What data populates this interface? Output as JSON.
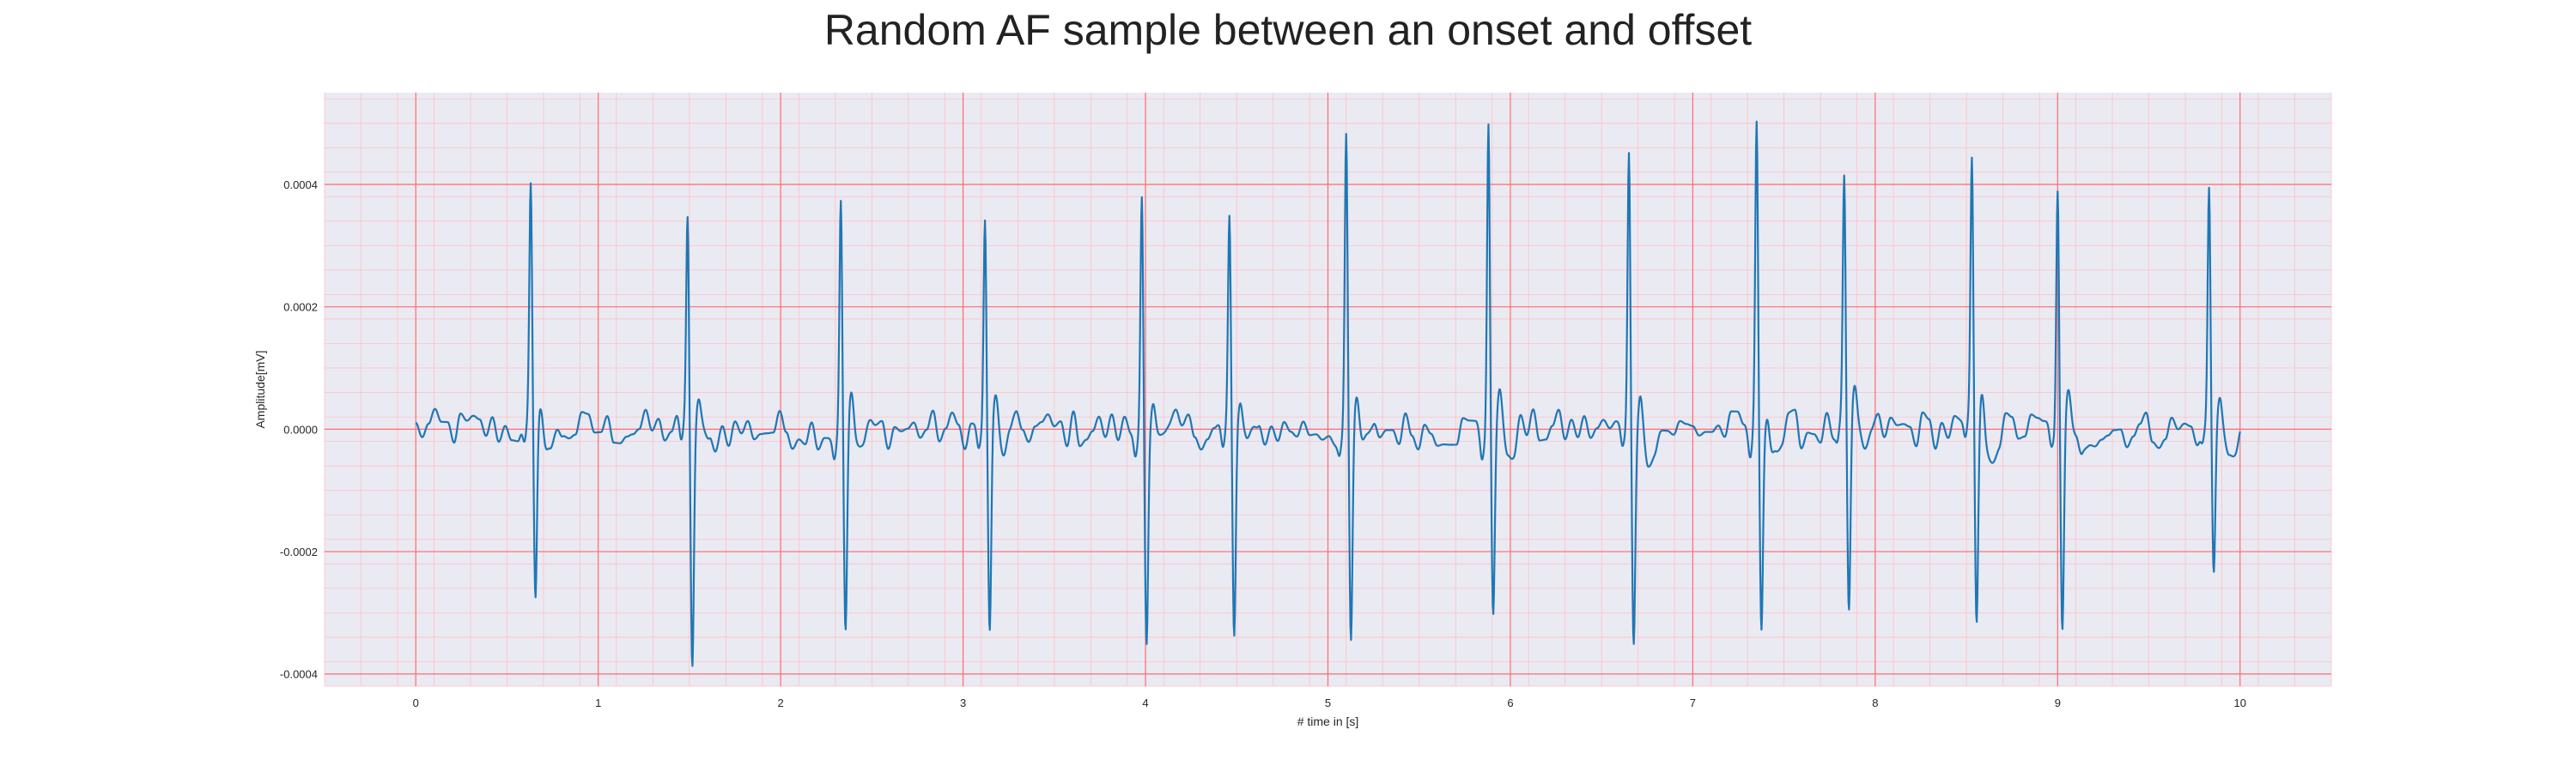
{
  "chart_data": {
    "type": "line",
    "title": "Random AF sample between an onset and offset",
    "xlabel": "# time in [s]",
    "ylabel": "Amplitude[mV]",
    "xlim": [
      -0.5,
      10.5
    ],
    "ylim": [
      -0.00042,
      0.00055
    ],
    "x_ticks": [
      0,
      1,
      2,
      3,
      4,
      5,
      6,
      7,
      8,
      9,
      10
    ],
    "x_tick_labels": [
      "0",
      "1",
      "2",
      "3",
      "4",
      "5",
      "6",
      "7",
      "8",
      "9",
      "10"
    ],
    "y_ticks": [
      -0.0004,
      -0.0002,
      0.0,
      0.0002,
      0.0004
    ],
    "y_tick_labels": [
      "-0.0004",
      "-0.0002",
      "0.0000",
      "0.0002",
      "0.0004"
    ],
    "grid": true,
    "colors": {
      "line": "#1f77b4",
      "plot_background": "#eaeaf2",
      "major_grid": "#ff6b6b",
      "minor_grid": "#ffc0c8"
    },
    "series": [
      {
        "x_start": 0,
        "x_end": 10,
        "beats": [
          {
            "t": 0.63,
            "peak": 0.00038,
            "trough": -0.0003
          },
          {
            "t": 1.49,
            "peak": 0.00035,
            "trough": -0.00038
          },
          {
            "t": 2.33,
            "peak": 0.00039,
            "trough": -0.00032
          },
          {
            "t": 3.12,
            "peak": 0.00035,
            "trough": -0.00035
          },
          {
            "t": 3.98,
            "peak": 0.00041,
            "trough": -0.00033
          },
          {
            "t": 4.46,
            "peak": 0.00034,
            "trough": -0.00035
          },
          {
            "t": 5.1,
            "peak": 0.00046,
            "trough": -0.00037
          },
          {
            "t": 5.88,
            "peak": 0.00052,
            "trough": -0.0003
          },
          {
            "t": 6.65,
            "peak": 0.00047,
            "trough": -0.00033
          },
          {
            "t": 7.35,
            "peak": 0.00048,
            "trough": -0.00032
          },
          {
            "t": 7.83,
            "peak": 0.0004,
            "trough": -0.00032
          },
          {
            "t": 8.53,
            "peak": 0.00044,
            "trough": -0.00033
          },
          {
            "t": 9.0,
            "peak": 0.00041,
            "trough": -0.00035
          },
          {
            "t": 9.83,
            "peak": 0.0004,
            "trough": -0.00024
          }
        ],
        "baseline_noise_amplitude": 3e-05
      }
    ]
  }
}
